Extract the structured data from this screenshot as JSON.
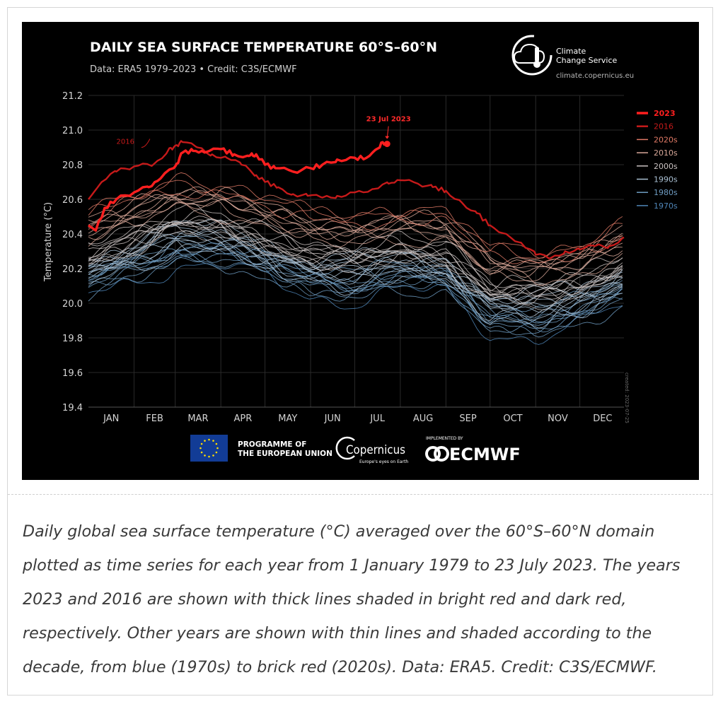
{
  "caption": "Daily global sea surface temperature (°C) averaged over the 60°S–60°N domain plotted as time series for each year from 1 January 1979 to 23 July 2023. The years 2023 and 2016 are shown with thick lines shaded in bright red and dark red, respectively. Other years are shown with thin lines and shaded according to the decade, from blue (1970s) to brick red (2020s). Data: ERA5. Credit: C3S/ECMWF.",
  "branding": {
    "c3s_line1": "Climate",
    "c3s_line2": "Change Service",
    "c3s_url": "climate.copernicus.eu",
    "eu_line1": "PROGRAMME OF",
    "eu_line2": "THE EUROPEAN UNION",
    "copernicus": "Copernicus",
    "copernicus_tagline": "Europe's eyes on Earth",
    "implemented_by": "IMPLEMENTED BY",
    "ecmwf": "ECMWF",
    "created": "created: 2023-07-25"
  },
  "chart_data": {
    "type": "line",
    "title": "DAILY SEA SURFACE TEMPERATURE 60°S–60°N",
    "subtitle": "Data: ERA5 1979–2023 • Credit: C3S/ECMWF",
    "xlabel": "",
    "ylabel": "Temperature (°C)",
    "ylim": [
      19.4,
      21.2
    ],
    "yticks": [
      "21.2",
      "21.0",
      "20.8",
      "20.6",
      "20.4",
      "20.2",
      "20.0",
      "19.8",
      "19.6",
      "19.4"
    ],
    "months": [
      "JAN",
      "FEB",
      "MAR",
      "APR",
      "MAY",
      "JUN",
      "JUL",
      "AUG",
      "SEP",
      "OCT",
      "NOV",
      "DEC"
    ],
    "grid": true,
    "legend_position": "right",
    "legend": [
      {
        "label": "2023",
        "color": "#ff1f1f"
      },
      {
        "label": "2016",
        "color": "#c61a1a"
      },
      {
        "label": "2020s",
        "color": "#e07a66"
      },
      {
        "label": "2010s",
        "color": "#d9a899"
      },
      {
        "label": "2000s",
        "color": "#c9c1c0"
      },
      {
        "label": "1990s",
        "color": "#a9bfd2"
      },
      {
        "label": "1980s",
        "color": "#6f9cc2"
      },
      {
        "label": "1970s",
        "color": "#4f86b8"
      }
    ],
    "annotations": {
      "label_2016": "2016",
      "label_2023": "23 Jul 2023",
      "point_2023": {
        "day": 204,
        "value": 20.92
      }
    },
    "decade_curves": [
      {
        "decade": "1970s",
        "color": "#4f86b8",
        "years": 1,
        "offset": -0.22,
        "spread": 0.06
      },
      {
        "decade": "1980s",
        "color": "#6f9cc2",
        "years": 10,
        "offset": -0.13,
        "spread": 0.06
      },
      {
        "decade": "1990s",
        "color": "#a9bfd2",
        "years": 10,
        "offset": -0.04,
        "spread": 0.06
      },
      {
        "decade": "2000s",
        "color": "#c9c1c0",
        "years": 10,
        "offset": 0.05,
        "spread": 0.06
      },
      {
        "decade": "2010s",
        "color": "#d9a899",
        "years": 8,
        "offset": 0.15,
        "spread": 0.07
      },
      {
        "decade": "2020s",
        "color": "#e07a66",
        "years": 3,
        "offset": 0.27,
        "spread": 0.04
      }
    ],
    "baseline_climatology": {
      "days": [
        1,
        32,
        60,
        91,
        121,
        152,
        182,
        213,
        244,
        274,
        305,
        335,
        365
      ],
      "values": [
        20.24,
        20.33,
        20.43,
        20.42,
        20.33,
        20.24,
        20.23,
        20.28,
        20.24,
        20.03,
        20.02,
        20.07,
        20.18
      ]
    },
    "series": [
      {
        "name": "2016",
        "color": "#c61a1a",
        "days": [
          1,
          10,
          20,
          32,
          45,
          55,
          60,
          65,
          75,
          85,
          95,
          105,
          115,
          121,
          130,
          140,
          150,
          160,
          170,
          182,
          195,
          205,
          213,
          225,
          235,
          244,
          255,
          265,
          274,
          285,
          295,
          305,
          315,
          325,
          335,
          345,
          355,
          365
        ],
        "values": [
          20.6,
          20.7,
          20.76,
          20.79,
          20.8,
          20.88,
          20.91,
          20.93,
          20.9,
          20.86,
          20.84,
          20.8,
          20.74,
          20.7,
          20.67,
          20.63,
          20.62,
          20.61,
          20.62,
          20.64,
          20.66,
          20.69,
          20.71,
          20.69,
          20.67,
          20.65,
          20.58,
          20.52,
          20.45,
          20.4,
          20.35,
          20.28,
          20.26,
          20.3,
          20.31,
          20.33,
          20.33,
          20.38
        ]
      },
      {
        "name": "2023",
        "color": "#ff1f1f",
        "days": [
          1,
          6,
          12,
          20,
          32,
          42,
          50,
          60,
          65,
          72,
          80,
          91,
          100,
          110,
          115,
          121,
          128,
          140,
          152,
          160,
          170,
          182,
          190,
          197,
          201,
          204
        ],
        "values": [
          20.45,
          20.42,
          20.55,
          20.6,
          20.64,
          20.67,
          20.72,
          20.79,
          20.87,
          20.88,
          20.87,
          20.89,
          20.86,
          20.85,
          20.86,
          20.8,
          20.78,
          20.76,
          20.78,
          20.8,
          20.83,
          20.84,
          20.84,
          20.89,
          20.93,
          20.92
        ]
      }
    ]
  }
}
